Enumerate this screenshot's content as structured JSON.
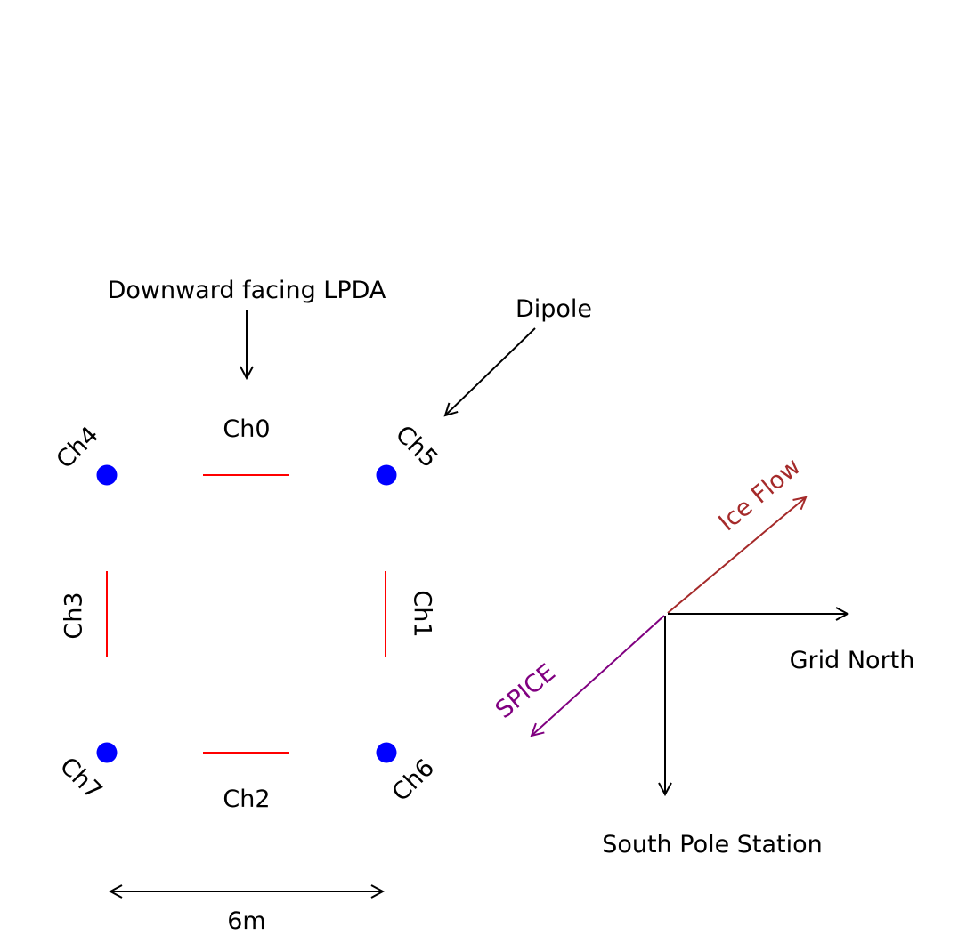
{
  "annotations": {
    "lpda": "Downward facing LPDA",
    "dipole": "Dipole"
  },
  "channels": {
    "ch0": "Ch0",
    "ch1": "Ch1",
    "ch2": "Ch2",
    "ch3": "Ch3",
    "ch4": "Ch4",
    "ch5": "Ch5",
    "ch6": "Ch6",
    "ch7": "Ch7"
  },
  "scale": {
    "label": "6m"
  },
  "compass": {
    "ice_flow": "Ice Flow",
    "grid_north": "Grid North",
    "south_pole": "South Pole Station",
    "spice": "SPICE"
  },
  "colors": {
    "dipole_marker": "#0000ff",
    "lpda_line": "#ff0000",
    "ice_flow": "#a52a2a",
    "spice": "#800080",
    "arrow": "#000000"
  }
}
